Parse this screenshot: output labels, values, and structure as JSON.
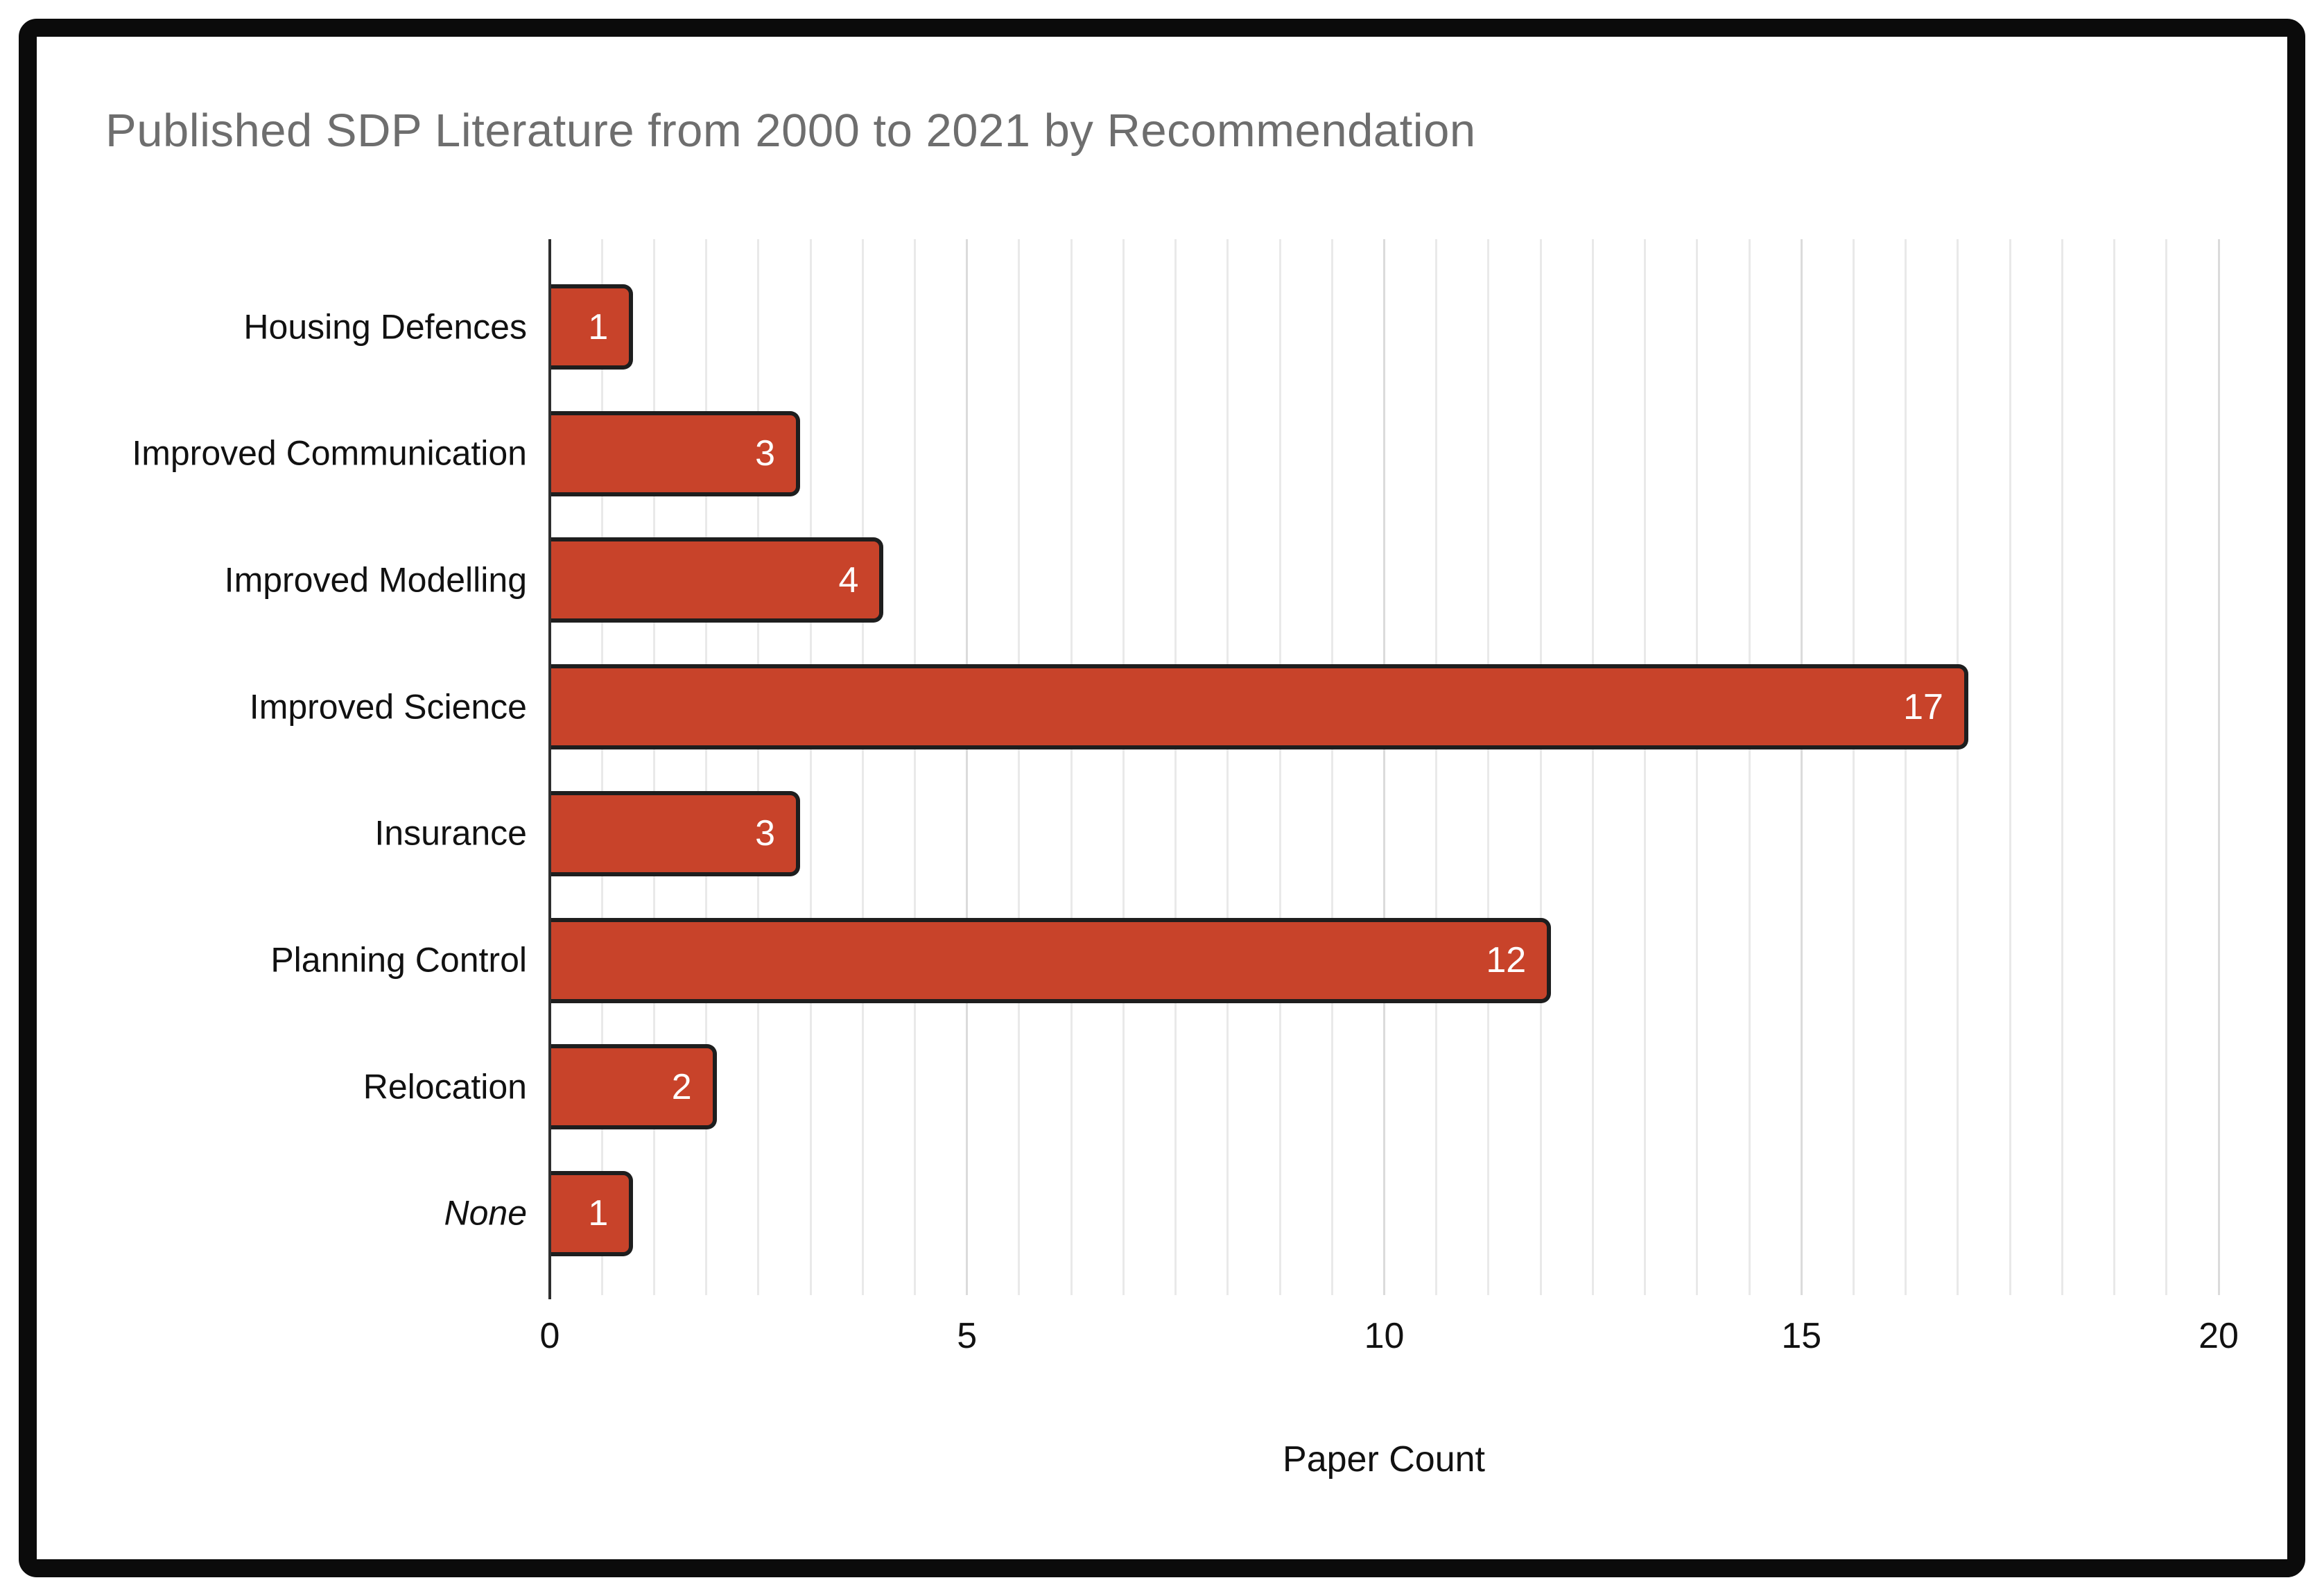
{
  "chart_data": {
    "type": "bar",
    "orientation": "horizontal",
    "title": "Published SDP Literature from 2000 to 2021 by Recommendation",
    "categories": [
      "Housing Defences",
      "Improved Communication",
      "Improved Modelling",
      "Improved Science",
      "Insurance",
      "Planning Control",
      "Relocation",
      "None"
    ],
    "values": [
      1,
      3,
      4,
      17,
      3,
      12,
      2,
      1
    ],
    "italic_categories": [
      "None"
    ],
    "xlabel": "Paper Count",
    "x_ticks": [
      "0",
      "5",
      "10",
      "15",
      "20"
    ],
    "xlim": [
      0,
      20
    ],
    "grid": true,
    "grid_step": 0.625,
    "major_grid_step": 5,
    "legend_position": "none",
    "colors": {
      "bar_fill": "#C8432A",
      "bar_border": "#1E1E1E",
      "value_label": "#FFFFFF",
      "title_text": "#6E6E6E",
      "axis_text": "#111111",
      "grid_minor": "#E9E9E9",
      "grid_major": "#DBDBDB",
      "axis_line": "#2E2E2E",
      "frame": "#0B0B0B"
    }
  }
}
